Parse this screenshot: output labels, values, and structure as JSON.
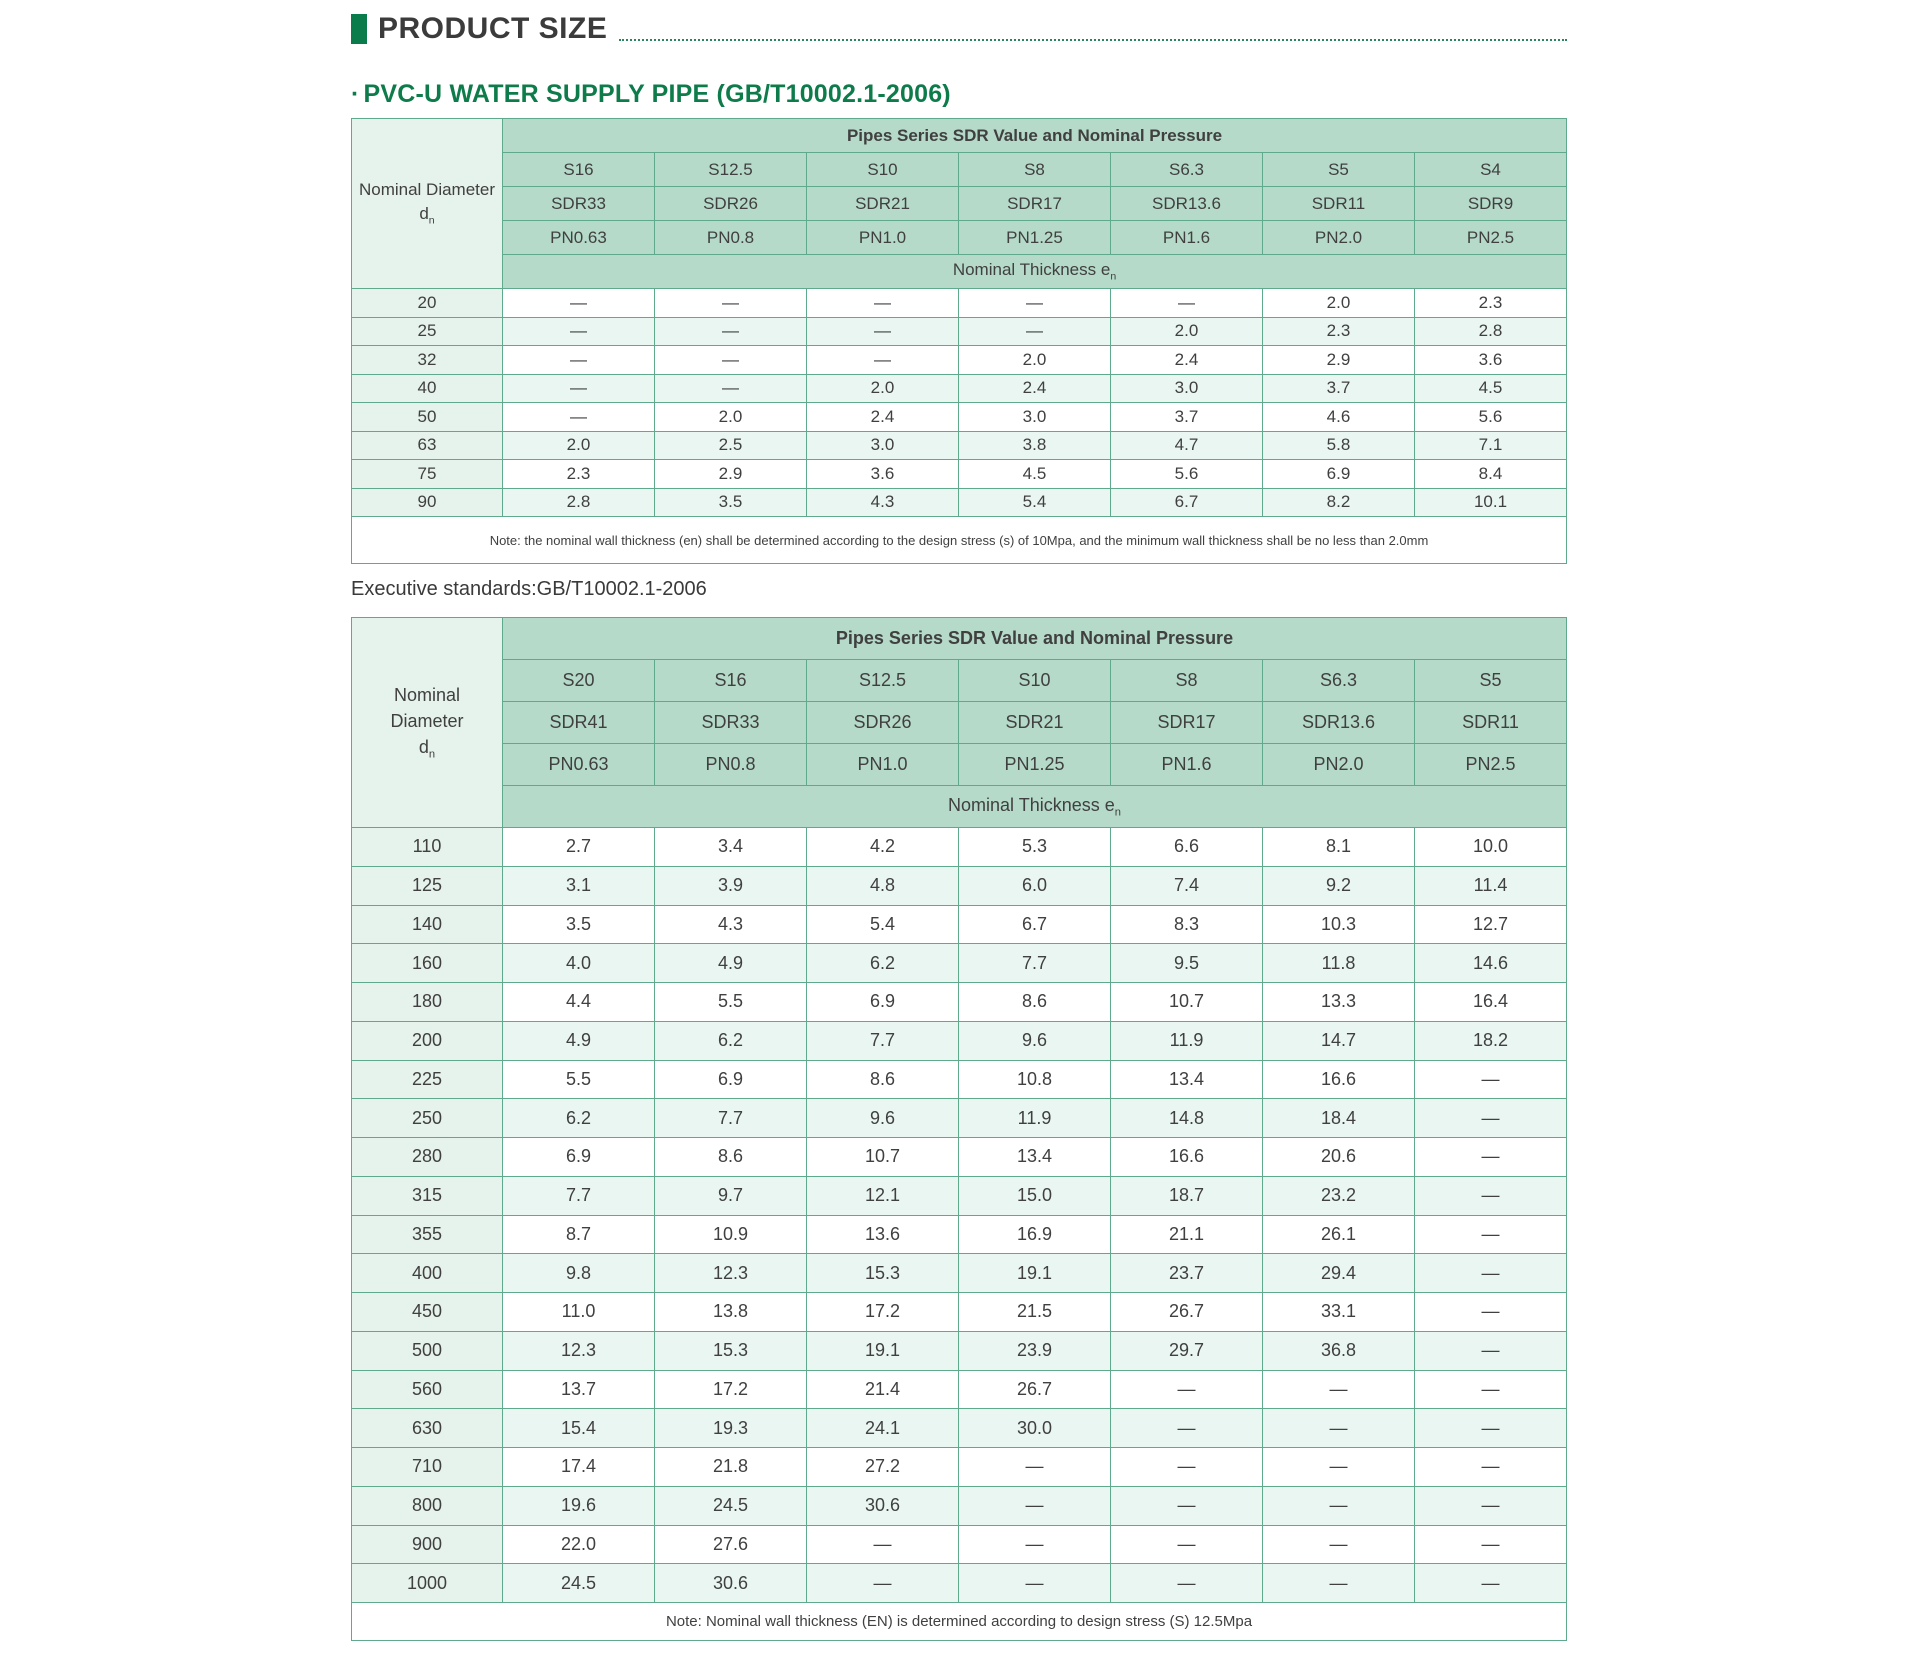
{
  "page": {
    "section_title": "PRODUCT SIZE",
    "subtitle_bullet": "·",
    "subtitle": "PVC-U WATER SUPPLY PIPE (GB/T10002.1-2006)",
    "executive_standards": "Executive standards:GB/T10002.1-2006"
  },
  "colors": {
    "accent_green": "#0a7c4c",
    "subtitle_green": "#0e7b4b",
    "table_border": "#5fa98c",
    "header_cell_bg": "#b5dac9",
    "diameter_col_bg": "#e6f2ec",
    "zebra_row_bg": "#eaf6f1",
    "title_text": "#3b3b3b"
  },
  "table1": {
    "banner": "Pipes Series SDR Value and Nominal Pressure",
    "diameter_label": "Nominal Diameter",
    "diameter_symbol": "d",
    "diameter_symbol_sub": "n",
    "s": [
      "S16",
      "S12.5",
      "S10",
      "S8",
      "S6.3",
      "S5",
      "S4"
    ],
    "sdr": [
      "SDR33",
      "SDR26",
      "SDR21",
      "SDR17",
      "SDR13.6",
      "SDR11",
      "SDR9"
    ],
    "pn": [
      "PN0.63",
      "PN0.8",
      "PN1.0",
      "PN1.25",
      "PN1.6",
      "PN2.0",
      "PN2.5"
    ],
    "thickness_label": "Nominal Thickness e",
    "thickness_sub": "n",
    "rows": [
      {
        "d": "20",
        "v": [
          "—",
          "—",
          "—",
          "—",
          "—",
          "2.0",
          "2.3"
        ]
      },
      {
        "d": "25",
        "v": [
          "—",
          "—",
          "—",
          "—",
          "2.0",
          "2.3",
          "2.8"
        ]
      },
      {
        "d": "32",
        "v": [
          "—",
          "—",
          "—",
          "2.0",
          "2.4",
          "2.9",
          "3.6"
        ]
      },
      {
        "d": "40",
        "v": [
          "—",
          "—",
          "2.0",
          "2.4",
          "3.0",
          "3.7",
          "4.5"
        ]
      },
      {
        "d": "50",
        "v": [
          "—",
          "2.0",
          "2.4",
          "3.0",
          "3.7",
          "4.6",
          "5.6"
        ]
      },
      {
        "d": "63",
        "v": [
          "2.0",
          "2.5",
          "3.0",
          "3.8",
          "4.7",
          "5.8",
          "7.1"
        ]
      },
      {
        "d": "75",
        "v": [
          "2.3",
          "2.9",
          "3.6",
          "4.5",
          "5.6",
          "6.9",
          "8.4"
        ]
      },
      {
        "d": "90",
        "v": [
          "2.8",
          "3.5",
          "4.3",
          "5.4",
          "6.7",
          "8.2",
          "10.1"
        ]
      }
    ],
    "note": "Note: the nominal wall thickness (en) shall be determined according to the design stress (s) of 10Mpa, and the minimum wall thickness shall be no less than 2.0mm"
  },
  "table2": {
    "banner": "Pipes Series SDR Value and Nominal Pressure",
    "diameter_label": "Nominal Diameter",
    "diameter_symbol": "d",
    "diameter_symbol_sub": "n",
    "s": [
      "S20",
      "S16",
      "S12.5",
      "S10",
      "S8",
      "S6.3",
      "S5"
    ],
    "sdr": [
      "SDR41",
      "SDR33",
      "SDR26",
      "SDR21",
      "SDR17",
      "SDR13.6",
      "SDR11"
    ],
    "pn": [
      "PN0.63",
      "PN0.8",
      "PN1.0",
      "PN1.25",
      "PN1.6",
      "PN2.0",
      "PN2.5"
    ],
    "thickness_label": "Nominal Thickness e",
    "thickness_sub": "n",
    "rows": [
      {
        "d": "110",
        "v": [
          "2.7",
          "3.4",
          "4.2",
          "5.3",
          "6.6",
          "8.1",
          "10.0"
        ]
      },
      {
        "d": "125",
        "v": [
          "3.1",
          "3.9",
          "4.8",
          "6.0",
          "7.4",
          "9.2",
          "11.4"
        ]
      },
      {
        "d": "140",
        "v": [
          "3.5",
          "4.3",
          "5.4",
          "6.7",
          "8.3",
          "10.3",
          "12.7"
        ]
      },
      {
        "d": "160",
        "v": [
          "4.0",
          "4.9",
          "6.2",
          "7.7",
          "9.5",
          "11.8",
          "14.6"
        ]
      },
      {
        "d": "180",
        "v": [
          "4.4",
          "5.5",
          "6.9",
          "8.6",
          "10.7",
          "13.3",
          "16.4"
        ]
      },
      {
        "d": "200",
        "v": [
          "4.9",
          "6.2",
          "7.7",
          "9.6",
          "11.9",
          "14.7",
          "18.2"
        ]
      },
      {
        "d": "225",
        "v": [
          "5.5",
          "6.9",
          "8.6",
          "10.8",
          "13.4",
          "16.6",
          "—"
        ]
      },
      {
        "d": "250",
        "v": [
          "6.2",
          "7.7",
          "9.6",
          "11.9",
          "14.8",
          "18.4",
          "—"
        ]
      },
      {
        "d": "280",
        "v": [
          "6.9",
          "8.6",
          "10.7",
          "13.4",
          "16.6",
          "20.6",
          "—"
        ]
      },
      {
        "d": "315",
        "v": [
          "7.7",
          "9.7",
          "12.1",
          "15.0",
          "18.7",
          "23.2",
          "—"
        ]
      },
      {
        "d": "355",
        "v": [
          "8.7",
          "10.9",
          "13.6",
          "16.9",
          "21.1",
          "26.1",
          "—"
        ]
      },
      {
        "d": "400",
        "v": [
          "9.8",
          "12.3",
          "15.3",
          "19.1",
          "23.7",
          "29.4",
          "—"
        ]
      },
      {
        "d": "450",
        "v": [
          "11.0",
          "13.8",
          "17.2",
          "21.5",
          "26.7",
          "33.1",
          "—"
        ]
      },
      {
        "d": "500",
        "v": [
          "12.3",
          "15.3",
          "19.1",
          "23.9",
          "29.7",
          "36.8",
          "—"
        ]
      },
      {
        "d": "560",
        "v": [
          "13.7",
          "17.2",
          "21.4",
          "26.7",
          "—",
          "—",
          "—"
        ]
      },
      {
        "d": "630",
        "v": [
          "15.4",
          "19.3",
          "24.1",
          "30.0",
          "—",
          "—",
          "—"
        ]
      },
      {
        "d": "710",
        "v": [
          "17.4",
          "21.8",
          "27.2",
          "—",
          "—",
          "—",
          "—"
        ]
      },
      {
        "d": "800",
        "v": [
          "19.6",
          "24.5",
          "30.6",
          "—",
          "—",
          "—",
          "—"
        ]
      },
      {
        "d": "900",
        "v": [
          "22.0",
          "27.6",
          "—",
          "—",
          "—",
          "—",
          "—"
        ]
      },
      {
        "d": "1000",
        "v": [
          "24.5",
          "30.6",
          "—",
          "—",
          "—",
          "—",
          "—"
        ]
      }
    ],
    "note": "Note: Nominal wall thickness (EN) is determined according to design stress (S) 12.5Mpa"
  }
}
